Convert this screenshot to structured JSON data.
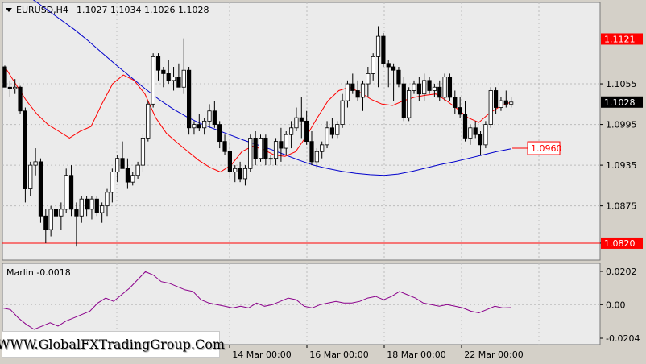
{
  "header": {
    "symbol": "EURUSD,H4",
    "ohlc": "1.1027 1.1034 1.1026 1.1028"
  },
  "indicator": {
    "label": "Marlin -0.0018"
  },
  "watermark": "WWW.GlobalFXTradingGroup.Com",
  "chart_data": [
    {
      "type": "candlestick",
      "symbol": "EURUSD",
      "timeframe": "H4",
      "ylim": [
        1.0795,
        1.1175
      ],
      "y_ticks": [
        "1.1121",
        "1.1055",
        "1.0995",
        "1.0935",
        "1.0875",
        "1.0820"
      ],
      "x_ticks": [
        "14 Mar 00:00",
        "16 Mar 00:00",
        "18 Mar 00:00",
        "22 Mar 00:00"
      ],
      "levels": [
        {
          "value": 1.1121,
          "label": "1.1121",
          "color": "#ff0000"
        },
        {
          "value": 1.082,
          "label": "1.0820",
          "color": "#ff0000"
        }
      ],
      "current_price": {
        "value": 1.1028,
        "label": "1.1028"
      },
      "target": {
        "value": 1.096,
        "label": "1.0960",
        "color": "#ff0000"
      },
      "colors": {
        "bull_fill": "#ffffff",
        "bear_fill": "#000000",
        "fast_ma": "#ff0000",
        "slow_ma": "#0000cc"
      },
      "candles": [
        [
          1.108,
          1.1082,
          1.105,
          1.105
        ],
        [
          1.105,
          1.106,
          1.1035,
          1.1048
        ],
        [
          1.1048,
          1.1062,
          1.104,
          1.105
        ],
        [
          1.105,
          1.1052,
          1.101,
          1.1015
        ],
        [
          1.1015,
          1.102,
          1.088,
          1.09
        ],
        [
          1.09,
          1.094,
          1.089,
          1.0935
        ],
        [
          1.0935,
          1.096,
          1.092,
          1.094
        ],
        [
          1.094,
          1.0945,
          1.085,
          1.086
        ],
        [
          1.086,
          1.087,
          1.082,
          1.084
        ],
        [
          1.084,
          1.0875,
          1.083,
          1.087
        ],
        [
          1.087,
          1.088,
          1.085,
          1.086
        ],
        [
          1.086,
          1.088,
          1.084,
          1.087
        ],
        [
          1.087,
          1.093,
          1.0865,
          1.092
        ],
        [
          1.092,
          1.0935,
          1.086,
          1.087
        ],
        [
          1.087,
          1.088,
          1.0815,
          1.086
        ],
        [
          1.086,
          1.089,
          1.085,
          1.0885
        ],
        [
          1.0885,
          1.089,
          1.086,
          1.087
        ],
        [
          1.087,
          1.089,
          1.0855,
          1.0885
        ],
        [
          1.0885,
          1.089,
          1.086,
          1.0865
        ],
        [
          1.0865,
          1.088,
          1.085,
          1.0875
        ],
        [
          1.0875,
          1.09,
          1.086,
          1.0895
        ],
        [
          1.0895,
          1.093,
          1.088,
          1.0925
        ],
        [
          1.0925,
          1.095,
          1.091,
          1.0945
        ],
        [
          1.0945,
          1.097,
          1.093,
          1.093
        ],
        [
          1.093,
          1.0945,
          1.09,
          1.091
        ],
        [
          1.091,
          1.0925,
          1.0905,
          1.092
        ],
        [
          1.092,
          1.094,
          1.0915,
          1.0935
        ],
        [
          1.0935,
          1.098,
          1.0925,
          1.0975
        ],
        [
          1.0975,
          1.103,
          1.097,
          1.1025
        ],
        [
          1.1025,
          1.11,
          1.102,
          1.1095
        ],
        [
          1.1095,
          1.11,
          1.106,
          1.1075
        ],
        [
          1.1075,
          1.108,
          1.105,
          1.107
        ],
        [
          1.107,
          1.109,
          1.1055,
          1.106
        ],
        [
          1.106,
          1.108,
          1.1045,
          1.1065
        ],
        [
          1.1065,
          1.1085,
          1.105,
          1.105
        ],
        [
          1.105,
          1.1122,
          1.104,
          1.1075
        ],
        [
          1.1075,
          1.108,
          1.098,
          1.099
        ],
        [
          1.099,
          1.1,
          1.098,
          1.0995
        ],
        [
          1.0995,
          1.101,
          1.0985,
          1.099
        ],
        [
          1.099,
          1.1005,
          1.098,
          1.1
        ],
        [
          1.1,
          1.1025,
          1.099,
          1.1015
        ],
        [
          1.1015,
          1.103,
          1.099,
          1.0995
        ],
        [
          1.0995,
          1.1,
          1.096,
          1.097
        ],
        [
          1.097,
          1.098,
          1.095,
          1.0955
        ],
        [
          1.0955,
          1.097,
          1.0915,
          1.0925
        ],
        [
          1.0925,
          1.0935,
          1.091,
          1.093
        ],
        [
          1.093,
          1.094,
          1.091,
          1.0915
        ],
        [
          1.0915,
          1.0935,
          1.0905,
          1.093
        ],
        [
          1.093,
          1.098,
          1.0925,
          1.0975
        ],
        [
          1.0975,
          1.0985,
          1.0935,
          1.0945
        ],
        [
          1.0945,
          1.098,
          1.094,
          1.0975
        ],
        [
          1.0975,
          1.098,
          1.0935,
          1.0945
        ],
        [
          1.0945,
          1.095,
          1.0935,
          1.0945
        ],
        [
          1.0945,
          1.0975,
          1.0935,
          1.097
        ],
        [
          1.097,
          1.099,
          1.094,
          1.096
        ],
        [
          1.096,
          1.0985,
          1.095,
          1.098
        ],
        [
          1.098,
          1.1,
          1.096,
          1.099
        ],
        [
          1.099,
          1.102,
          1.0985,
          1.1005
        ],
        [
          1.1005,
          1.1035,
          1.0975,
          1.1
        ],
        [
          1.1,
          1.1015,
          1.0965,
          1.097
        ],
        [
          1.097,
          1.0985,
          1.0935,
          1.094
        ],
        [
          1.094,
          1.096,
          1.093,
          1.0955
        ],
        [
          1.0955,
          1.097,
          1.0945,
          1.0965
        ],
        [
          1.0965,
          1.1,
          1.096,
          1.099
        ],
        [
          1.099,
          1.1005,
          1.0975,
          1.098
        ],
        [
          1.098,
          1.1,
          1.0975,
          1.0995
        ],
        [
          1.0995,
          1.104,
          1.099,
          1.103
        ],
        [
          1.103,
          1.106,
          1.102,
          1.1055
        ],
        [
          1.1055,
          1.107,
          1.104,
          1.1045
        ],
        [
          1.1045,
          1.106,
          1.103,
          1.1035
        ],
        [
          1.1035,
          1.106,
          1.1015,
          1.1055
        ],
        [
          1.1055,
          1.108,
          1.1035,
          1.107
        ],
        [
          1.107,
          1.11,
          1.106,
          1.1095
        ],
        [
          1.1095,
          1.114,
          1.105,
          1.1125
        ],
        [
          1.1125,
          1.113,
          1.108,
          1.1085
        ],
        [
          1.1085,
          1.109,
          1.105,
          1.108
        ],
        [
          1.108,
          1.1085,
          1.103,
          1.1075
        ],
        [
          1.1075,
          1.108,
          1.105,
          1.1055
        ],
        [
          1.1055,
          1.1065,
          1.1,
          1.1005
        ],
        [
          1.1005,
          1.105,
          1.1,
          1.1045
        ],
        [
          1.1045,
          1.106,
          1.104,
          1.1055
        ],
        [
          1.1055,
          1.1065,
          1.103,
          1.104
        ],
        [
          1.104,
          1.107,
          1.103,
          1.106
        ],
        [
          1.106,
          1.1065,
          1.104,
          1.1045
        ],
        [
          1.1045,
          1.1055,
          1.1035,
          1.105
        ],
        [
          1.105,
          1.106,
          1.103,
          1.1035
        ],
        [
          1.1035,
          1.107,
          1.103,
          1.1065
        ],
        [
          1.1065,
          1.107,
          1.103,
          1.1035
        ],
        [
          1.1035,
          1.1045,
          1.101,
          1.102
        ],
        [
          1.102,
          1.1035,
          1.1005,
          1.101
        ],
        [
          1.101,
          1.103,
          1.097,
          1.0975
        ],
        [
          1.0975,
          1.0995,
          1.0965,
          1.099
        ],
        [
          1.099,
          1.1,
          1.0975,
          1.098
        ],
        [
          1.098,
          1.0985,
          1.095,
          1.0965
        ],
        [
          1.0965,
          1.1,
          1.096,
          1.0995
        ],
        [
          1.0995,
          1.105,
          1.099,
          1.1045
        ],
        [
          1.1045,
          1.105,
          1.101,
          1.102
        ],
        [
          1.102,
          1.1035,
          1.1015,
          1.103
        ],
        [
          1.103,
          1.1045,
          1.102,
          1.1025
        ],
        [
          1.1025,
          1.1035,
          1.102,
          1.1028
        ]
      ],
      "slow_ma": [
        1.118,
        1.1165,
        1.115,
        1.1135,
        1.1118,
        1.11,
        1.1082,
        1.1065,
        1.1048,
        1.1032,
        1.1018,
        1.1006,
        1.0996,
        1.0988,
        1.098,
        1.0972,
        1.0965,
        1.0958,
        1.095,
        1.0942,
        1.0935,
        1.093,
        1.0926,
        1.0923,
        1.0921,
        1.092,
        1.0922,
        1.0926,
        1.0931,
        1.0936,
        1.094,
        1.0945,
        1.095,
        1.0955,
        1.0959
      ],
      "fast_ma": [
        1.108,
        1.1055,
        1.103,
        1.101,
        1.0995,
        1.0985,
        1.0975,
        1.0985,
        1.0992,
        1.1025,
        1.1055,
        1.1068,
        1.106,
        1.104,
        1.1005,
        1.0982,
        1.0968,
        1.0955,
        1.0942,
        1.0932,
        1.0925,
        1.0935,
        1.0955,
        1.0963,
        1.0958,
        1.095,
        1.0948,
        1.0955,
        1.0978,
        1.1005,
        1.103,
        1.1045,
        1.105,
        1.1042,
        1.1032,
        1.1025,
        1.1023,
        1.103,
        1.1035,
        1.1038,
        1.104,
        1.103,
        1.1018,
        1.1005,
        1.0998,
        1.1012,
        1.1022,
        1.1028
      ]
    },
    {
      "type": "line",
      "name": "Marlin",
      "ylim": [
        -0.0204,
        0.0202
      ],
      "y_ticks": [
        "0.0202",
        "0.00",
        "-0.0204"
      ],
      "color": "#8b008b",
      "values": [
        -0.002,
        -0.003,
        -0.008,
        -0.012,
        -0.015,
        -0.013,
        -0.011,
        -0.013,
        -0.01,
        -0.008,
        -0.006,
        -0.004,
        0.001,
        0.004,
        0.002,
        0.006,
        0.01,
        0.015,
        0.02,
        0.018,
        0.014,
        0.013,
        0.011,
        0.009,
        0.008,
        0.003,
        0.001,
        0.0,
        -0.001,
        -0.002,
        -0.001,
        -0.002,
        0.001,
        -0.001,
        0.0,
        0.002,
        0.004,
        0.003,
        -0.001,
        -0.002,
        0.0,
        0.001,
        0.002,
        0.001,
        0.001,
        0.002,
        0.004,
        0.005,
        0.003,
        0.005,
        0.008,
        0.006,
        0.004,
        0.001,
        0.0,
        -0.001,
        0.0,
        -0.001,
        -0.002,
        -0.004,
        -0.005,
        -0.003,
        -0.001,
        -0.002,
        -0.0018
      ]
    }
  ]
}
